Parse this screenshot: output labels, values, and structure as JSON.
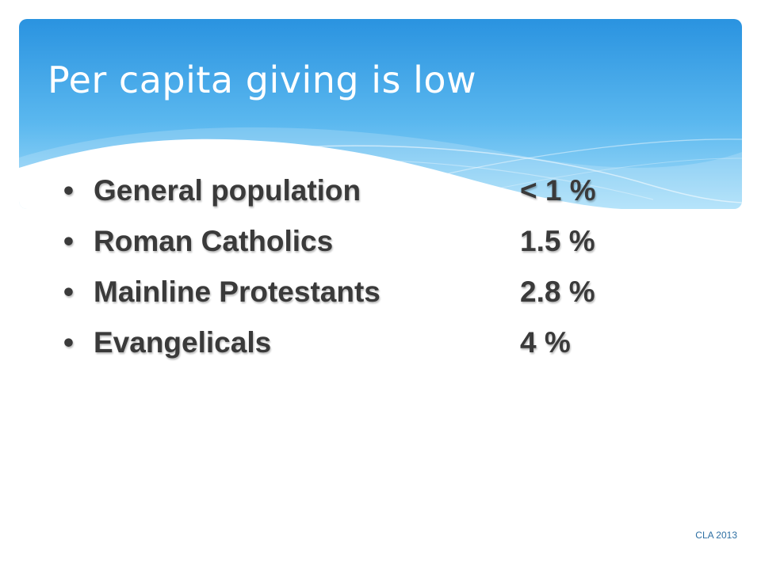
{
  "slide": {
    "title": "Per capita giving is low",
    "bullet_glyph": "•",
    "items": [
      {
        "label": "General population",
        "value": "< 1 %"
      },
      {
        "label": "Roman Catholics",
        "value": "1.5 %"
      },
      {
        "label": "Mainline Protestants",
        "value": "2.8 %"
      },
      {
        "label": "Evangelicals",
        "value": "4 %"
      }
    ],
    "footer": "CLA 2013"
  },
  "colors": {
    "header_top": "#2f9ae4",
    "header_bottom": "#8fd2f8",
    "text": "#3a3a3a",
    "title_text": "#ffffff",
    "footer_text": "#2d6fa3"
  }
}
